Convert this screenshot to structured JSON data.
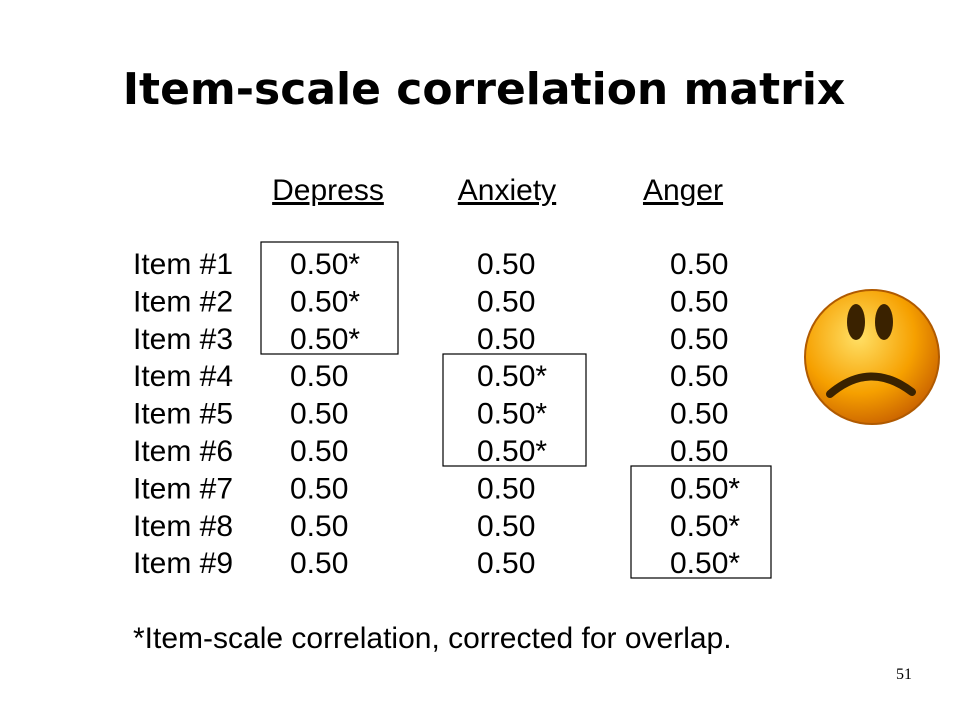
{
  "header": {
    "title": "Item-scale correlation matrix"
  },
  "table": {
    "columns": [
      "Depress",
      "Anxiety",
      "Anger"
    ],
    "rows": [
      {
        "label": "Item #1",
        "cells": [
          "0.50*",
          "0.50",
          "0.50"
        ]
      },
      {
        "label": "Item #2",
        "cells": [
          "0.50*",
          "0.50",
          "0.50"
        ]
      },
      {
        "label": "Item #3",
        "cells": [
          "0.50*",
          "0.50",
          "0.50"
        ]
      },
      {
        "label": "Item #4",
        "cells": [
          "0.50",
          "0.50*",
          "0.50"
        ]
      },
      {
        "label": "Item #5",
        "cells": [
          "0.50",
          "0.50*",
          "0.50"
        ]
      },
      {
        "label": "Item #6",
        "cells": [
          "0.50",
          "0.50*",
          "0.50"
        ]
      },
      {
        "label": "Item #7",
        "cells": [
          "0.50",
          "0.50",
          "0.50*"
        ]
      },
      {
        "label": "Item #8",
        "cells": [
          "0.50",
          "0.50",
          "0.50*"
        ]
      },
      {
        "label": "Item #9",
        "cells": [
          "0.50",
          "0.50",
          "0.50*"
        ]
      }
    ]
  },
  "footnote": "*Item-scale correlation, corrected for overlap.",
  "page_number": "51"
}
